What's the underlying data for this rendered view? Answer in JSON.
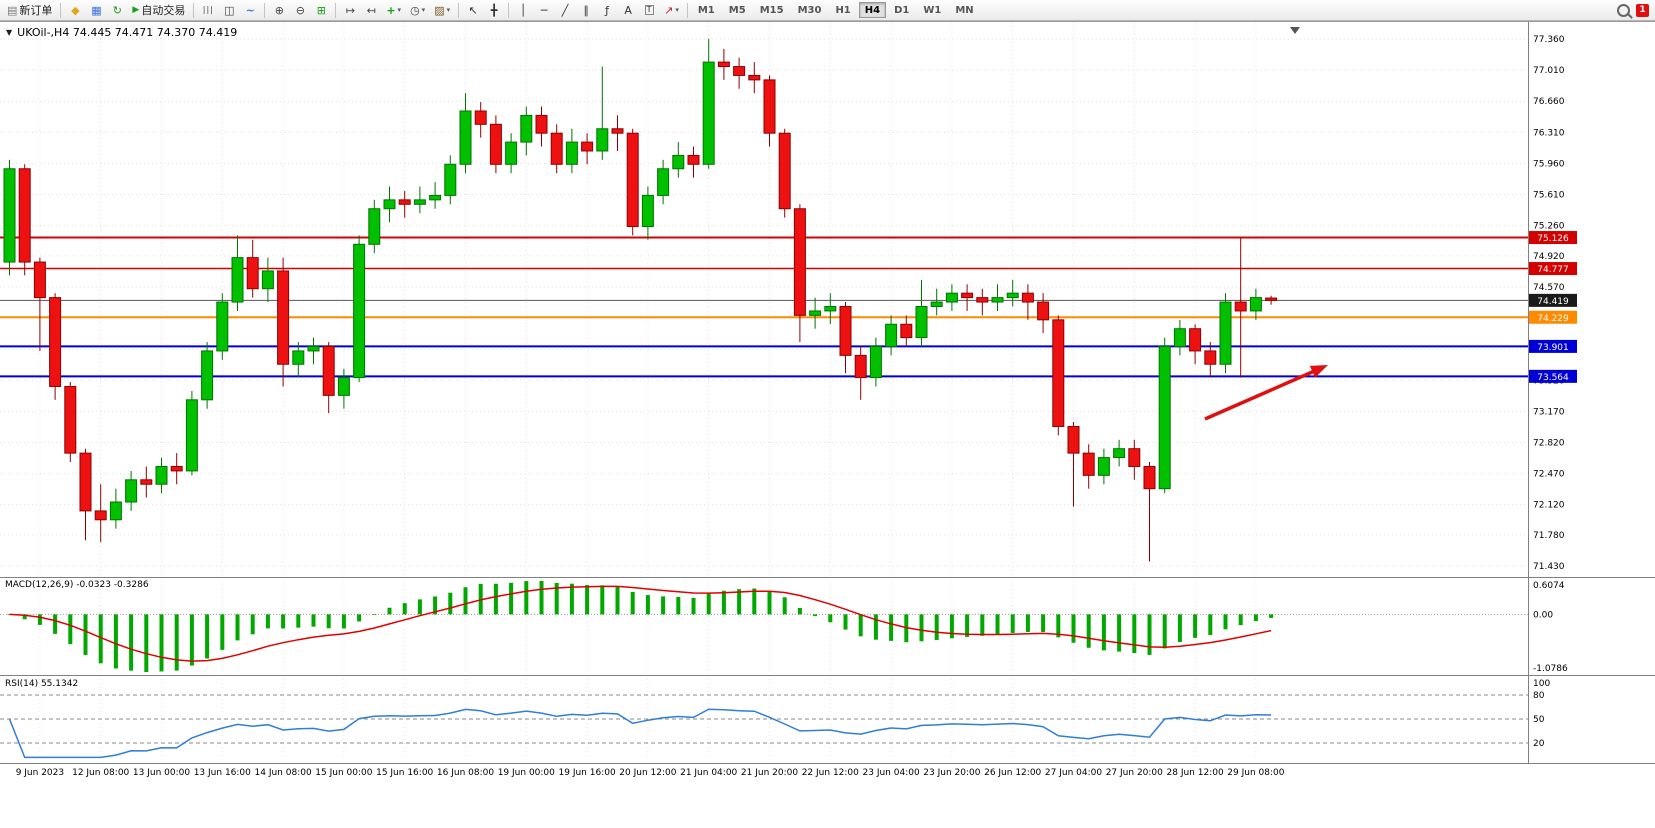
{
  "toolbar": {
    "new_order_label": "新订单",
    "auto_trading_label": "自动交易",
    "timeframes": [
      "M1",
      "M5",
      "M15",
      "M30",
      "H1",
      "H4",
      "D1",
      "W1",
      "MN"
    ],
    "active_timeframe": "H4",
    "notification_badge": "1"
  },
  "icons": {
    "new_order": "▤",
    "profiles": "◆",
    "charts": "▦",
    "refresh": "↻",
    "auto_play": "▶",
    "bar_chart": "|||",
    "candle_chart": "◫",
    "line_chart": "~",
    "zoom_in": "⊕",
    "zoom_out": "⊖",
    "tile_windows": "⊞",
    "auto_scroll": "↦",
    "chart_shift": "↤",
    "indicators": "+",
    "periods": "◷",
    "templates": "▨",
    "cursor": "↖",
    "crosshair": "╋",
    "vline": "│",
    "hline": "─",
    "trendline": "╱",
    "channel": "∥",
    "fibonacci": "ƒ",
    "text": "A",
    "label": "T",
    "shapes": "↗",
    "caret": "▾",
    "dropdown_triangle": "▼"
  },
  "chart": {
    "title": "UKOil-,H4 74.445 74.471 74.370 74.419"
  },
  "chart_data": {
    "type": "candlestick",
    "symbol": "UKOil-",
    "timeframe": "H4",
    "ohlc_title": {
      "open": "74.445",
      "high": "74.471",
      "low": "74.370",
      "close": "74.419"
    },
    "ylim": [
      71.33,
      77.55
    ],
    "price_axis_labels": [
      "77.360",
      "77.010",
      "76.660",
      "76.310",
      "75.960",
      "75.610",
      "75.260",
      "74.920",
      "74.570",
      "74.220",
      "73.870",
      "73.520",
      "73.170",
      "72.820",
      "72.470",
      "72.120",
      "71.780",
      "71.430"
    ],
    "time_axis": {
      "labels": [
        "9 Jun 2023",
        "12 Jun 08:00",
        "13 Jun 00:00",
        "13 Jun 16:00",
        "14 Jun 08:00",
        "15 Jun 00:00",
        "15 Jun 16:00",
        "16 Jun 08:00",
        "19 Jun 00:00",
        "19 Jun 16:00",
        "20 Jun 12:00",
        "21 Jun 04:00",
        "21 Jun 20:00",
        "22 Jun 12:00",
        "23 Jun 04:00",
        "23 Jun 20:00",
        "26 Jun 12:00",
        "27 Jun 04:00",
        "27 Jun 20:00",
        "28 Jun 12:00",
        "29 Jun 08:00"
      ],
      "first_candle_index": 2,
      "step": 4
    },
    "hlines": [
      {
        "price": 75.126,
        "label": "75.126",
        "color": "#d40000",
        "width": 2
      },
      {
        "price": 74.777,
        "label": "74.777",
        "color": "#d40000",
        "width": 1.5
      },
      {
        "price": 74.229,
        "label": "74.229",
        "color": "#ff8a00",
        "width": 2
      },
      {
        "price": 73.901,
        "label": "73.901",
        "color": "#0000d4",
        "width": 2
      },
      {
        "price": 73.564,
        "label": "73.564",
        "color": "#0000d4",
        "width": 2
      }
    ],
    "current_price": {
      "value": 74.419,
      "label": "74.419",
      "tag_color": "#1a1a1a",
      "line_color": "#555555"
    },
    "colors": {
      "candle_up": "#00c000",
      "candle_up_stroke": "#007500",
      "candle_down": "#ee1111",
      "candle_down_stroke": "#8f0000",
      "macd_bar": "#00a800",
      "macd_signal": "#e00000",
      "rsi_line": "#2f7ed8",
      "arrow": "#e01010"
    },
    "candles": [
      [
        74.85,
        76.0,
        74.7,
        75.9
      ],
      [
        75.9,
        75.95,
        74.7,
        74.85
      ],
      [
        74.85,
        74.9,
        73.85,
        74.45
      ],
      [
        74.45,
        74.5,
        73.3,
        73.45
      ],
      [
        73.45,
        73.5,
        72.6,
        72.7
      ],
      [
        72.7,
        72.75,
        71.72,
        72.05
      ],
      [
        72.05,
        72.35,
        71.7,
        71.95
      ],
      [
        71.95,
        72.3,
        71.85,
        72.15
      ],
      [
        72.15,
        72.5,
        72.05,
        72.4
      ],
      [
        72.4,
        72.55,
        72.2,
        72.35
      ],
      [
        72.35,
        72.65,
        72.25,
        72.55
      ],
      [
        72.55,
        72.7,
        72.35,
        72.5
      ],
      [
        72.5,
        73.4,
        72.45,
        73.3
      ],
      [
        73.3,
        73.95,
        73.2,
        73.85
      ],
      [
        73.85,
        74.5,
        73.75,
        74.4
      ],
      [
        74.4,
        75.15,
        74.3,
        74.9
      ],
      [
        74.9,
        75.1,
        74.45,
        74.55
      ],
      [
        74.55,
        74.9,
        74.4,
        74.75
      ],
      [
        74.75,
        74.9,
        73.45,
        73.7
      ],
      [
        73.7,
        73.95,
        73.55,
        73.85
      ],
      [
        73.85,
        74.0,
        73.7,
        73.9
      ],
      [
        73.9,
        73.95,
        73.15,
        73.35
      ],
      [
        73.35,
        73.65,
        73.2,
        73.55
      ],
      [
        73.55,
        75.15,
        73.5,
        75.05
      ],
      [
        75.05,
        75.55,
        74.95,
        75.45
      ],
      [
        75.45,
        75.7,
        75.3,
        75.55
      ],
      [
        75.55,
        75.65,
        75.35,
        75.5
      ],
      [
        75.5,
        75.7,
        75.4,
        75.55
      ],
      [
        75.55,
        75.75,
        75.45,
        75.6
      ],
      [
        75.6,
        76.05,
        75.5,
        75.95
      ],
      [
        75.95,
        76.75,
        75.85,
        76.55
      ],
      [
        76.55,
        76.65,
        76.25,
        76.4
      ],
      [
        76.4,
        76.5,
        75.85,
        75.95
      ],
      [
        75.95,
        76.3,
        75.85,
        76.2
      ],
      [
        76.2,
        76.6,
        76.05,
        76.5
      ],
      [
        76.5,
        76.6,
        76.15,
        76.3
      ],
      [
        76.3,
        76.4,
        75.85,
        75.95
      ],
      [
        75.95,
        76.35,
        75.85,
        76.2
      ],
      [
        76.2,
        76.3,
        75.95,
        76.1
      ],
      [
        76.1,
        77.05,
        76.0,
        76.35
      ],
      [
        76.35,
        76.5,
        76.1,
        76.3
      ],
      [
        76.3,
        76.35,
        75.15,
        75.25
      ],
      [
        75.25,
        75.7,
        75.1,
        75.6
      ],
      [
        75.6,
        76.0,
        75.5,
        75.9
      ],
      [
        75.9,
        76.2,
        75.8,
        76.05
      ],
      [
        76.05,
        76.15,
        75.8,
        75.95
      ],
      [
        75.95,
        77.36,
        75.9,
        77.1
      ],
      [
        77.1,
        77.25,
        76.9,
        77.05
      ],
      [
        77.05,
        77.15,
        76.8,
        76.95
      ],
      [
        76.95,
        77.1,
        76.75,
        76.9
      ],
      [
        76.9,
        76.95,
        76.15,
        76.3
      ],
      [
        76.3,
        76.35,
        75.35,
        75.45
      ],
      [
        75.45,
        75.5,
        73.95,
        74.25
      ],
      [
        74.25,
        74.45,
        74.1,
        74.3
      ],
      [
        74.3,
        74.5,
        74.15,
        74.35
      ],
      [
        74.35,
        74.4,
        73.6,
        73.8
      ],
      [
        73.8,
        73.9,
        73.3,
        73.55
      ],
      [
        73.55,
        74.0,
        73.45,
        73.9
      ],
      [
        73.9,
        74.25,
        73.8,
        74.15
      ],
      [
        74.15,
        74.25,
        73.9,
        74.0
      ],
      [
        74.0,
        74.65,
        73.9,
        74.35
      ],
      [
        74.35,
        74.55,
        74.25,
        74.4
      ],
      [
        74.4,
        74.6,
        74.3,
        74.5
      ],
      [
        74.5,
        74.6,
        74.3,
        74.45
      ],
      [
        74.45,
        74.55,
        74.25,
        74.4
      ],
      [
        74.4,
        74.6,
        74.3,
        74.45
      ],
      [
        74.45,
        74.65,
        74.35,
        74.5
      ],
      [
        74.5,
        74.6,
        74.2,
        74.4
      ],
      [
        74.4,
        74.5,
        74.05,
        74.2
      ],
      [
        74.2,
        74.25,
        72.9,
        73.0
      ],
      [
        73.0,
        73.05,
        72.1,
        72.7
      ],
      [
        72.7,
        72.8,
        72.3,
        72.45
      ],
      [
        72.45,
        72.75,
        72.35,
        72.65
      ],
      [
        72.65,
        72.85,
        72.55,
        72.75
      ],
      [
        72.75,
        72.85,
        72.4,
        72.55
      ],
      [
        72.55,
        72.6,
        71.48,
        72.3
      ],
      [
        72.3,
        74.0,
        72.25,
        73.9
      ],
      [
        73.9,
        74.2,
        73.8,
        74.1
      ],
      [
        74.1,
        74.15,
        73.7,
        73.85
      ],
      [
        73.85,
        73.95,
        73.55,
        73.7
      ],
      [
        73.7,
        74.5,
        73.6,
        74.4
      ],
      [
        74.4,
        75.12,
        73.55,
        74.3
      ],
      [
        74.3,
        74.55,
        74.2,
        74.45
      ],
      [
        74.445,
        74.471,
        74.37,
        74.419
      ]
    ],
    "macd": {
      "label": "MACD(12,26,9) -0.0323 -0.3286",
      "params": [
        12,
        26,
        9
      ],
      "values_text": [
        "-0.0323",
        "-0.3286"
      ],
      "axis_labels": [
        "0.6074",
        "0.00",
        "-1.0786"
      ]
    },
    "rsi": {
      "label": "RSI(14) 55.1342",
      "period": 14,
      "value_text": "55.1342",
      "levels": [
        80,
        50,
        20
      ],
      "axis_labels": [
        "100",
        "80",
        "50",
        "20"
      ]
    }
  }
}
